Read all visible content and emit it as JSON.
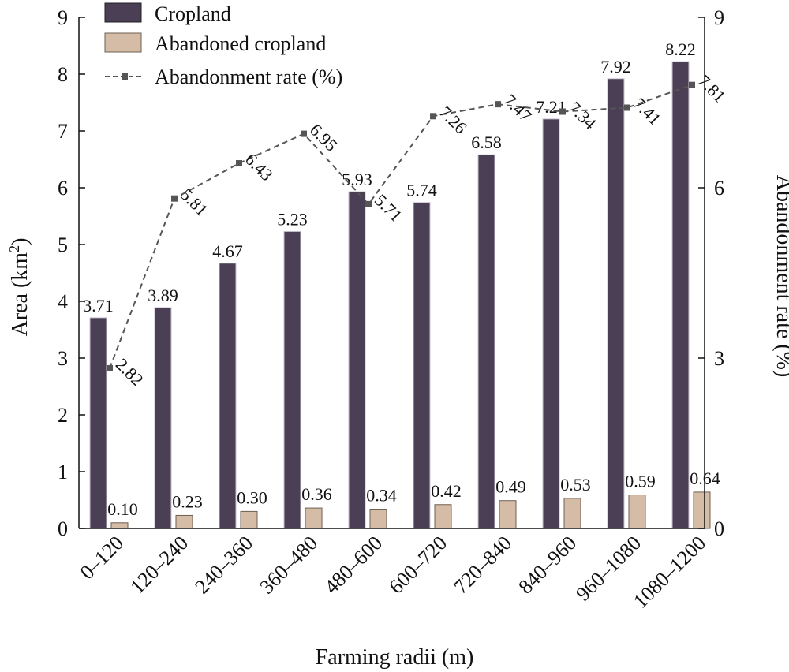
{
  "chart_data": {
    "type": "bar",
    "categories": [
      "0–120",
      "120–240",
      "240–360",
      "360–480",
      "480–600",
      "600–720",
      "720–840",
      "840–960",
      "960–1080",
      "1080–1200"
    ],
    "series": [
      {
        "name": "Cropland",
        "type": "bar",
        "axis": "left",
        "color": "#4a3f55",
        "values": [
          3.71,
          3.89,
          4.67,
          5.23,
          5.93,
          5.74,
          6.58,
          7.21,
          7.92,
          8.22
        ],
        "labels": [
          "3.71",
          "3.89",
          "4.67",
          "5.23",
          "5.93",
          "5.74",
          "6.58",
          "7.21",
          "7.92",
          "8.22"
        ]
      },
      {
        "name": "Abandoned cropland",
        "type": "bar",
        "axis": "left",
        "color": "#d4bca6",
        "values": [
          0.1,
          0.23,
          0.3,
          0.36,
          0.34,
          0.42,
          0.49,
          0.53,
          0.59,
          0.64
        ],
        "labels": [
          "0.10",
          "0.23",
          "0.30",
          "0.36",
          "0.34",
          "0.42",
          "0.49",
          "0.53",
          "0.59",
          "0.64"
        ]
      },
      {
        "name": "Abandonment rate (%)",
        "type": "line",
        "axis": "right",
        "color": "#555555",
        "values": [
          2.82,
          5.81,
          6.43,
          6.95,
          5.71,
          7.26,
          7.47,
          7.34,
          7.41,
          7.81
        ],
        "labels": [
          "2.82",
          "5.81",
          "6.43",
          "6.95",
          "5.71",
          "7.26",
          "7.47",
          "7.34",
          "7.41",
          "7.81"
        ]
      }
    ],
    "xlabel": "Farming radii (m)",
    "ylabel_text": "Area (km",
    "ylabel_sup": "2",
    "ylabel_close": ")",
    "y2label": "Abandonment rate (%)",
    "ylim": [
      0,
      9
    ],
    "y2lim": [
      0,
      9
    ],
    "yticks": [
      "0",
      "1",
      "2",
      "3",
      "4",
      "5",
      "6",
      "7",
      "8",
      "9"
    ],
    "y2ticks": [
      "0",
      "3",
      "6",
      "9"
    ],
    "legend": "top-left",
    "grid": false
  }
}
